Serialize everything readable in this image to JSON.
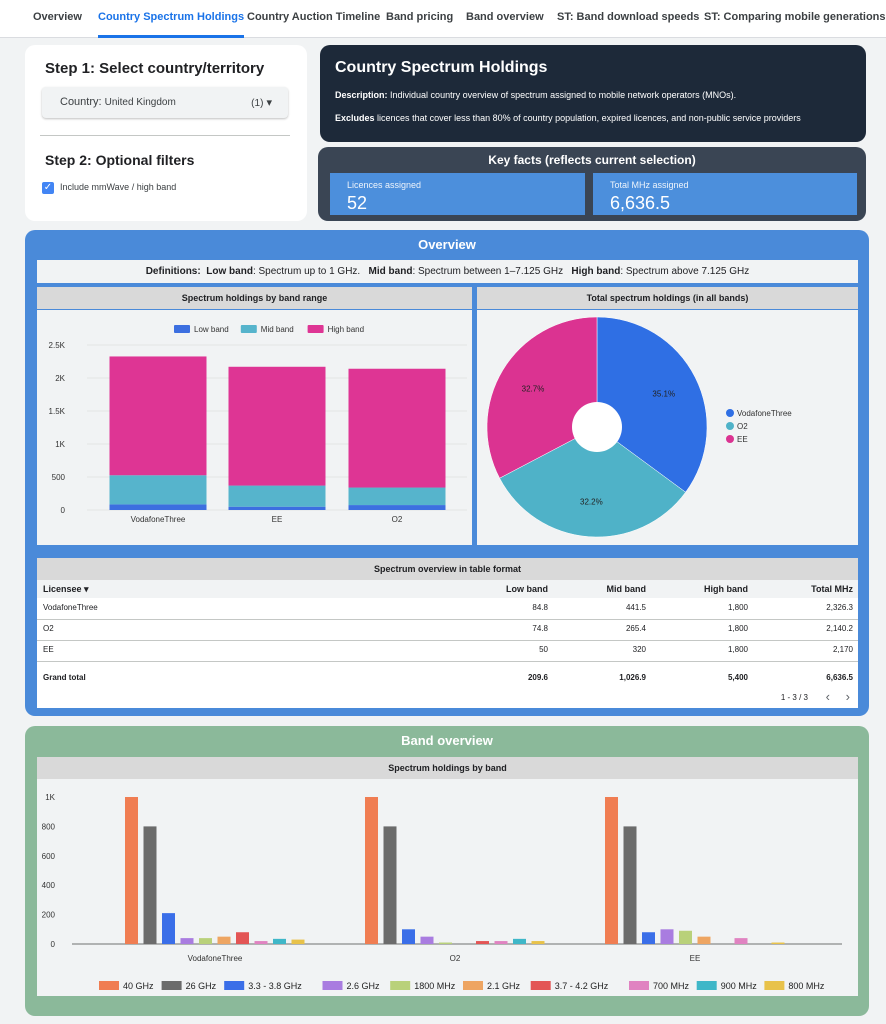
{
  "nav": {
    "tabs": [
      {
        "label": "Overview"
      },
      {
        "label": "Country Spectrum Holdings",
        "active": true
      },
      {
        "label": "Country Auction Timeline"
      },
      {
        "label": "Band pricing"
      },
      {
        "label": "Band overview"
      },
      {
        "label": "ST: Band download speeds"
      },
      {
        "label": "ST: Comparing mobile generations"
      }
    ]
  },
  "steps": {
    "step1_title": "Step 1: Select country/territory",
    "country_label": "Country:",
    "country_value": "United Kingdom",
    "country_count": "(1)",
    "step2_title": "Step 2: Optional filters",
    "mmwave_label": "Include mmWave / high band",
    "mmwave_checked": true
  },
  "header": {
    "title": "Country Spectrum Holdings",
    "desc_label": "Description:",
    "desc_text": "Individual country overview of spectrum assigned to mobile network operators (MNOs).",
    "excl_label": "Excludes",
    "excl_text": "licences that cover less than 80% of country population, expired licences, and non-public service providers"
  },
  "key_facts": {
    "title": "Key facts (reflects current selection)",
    "licences_label": "Licences assigned",
    "licences_value": "52",
    "mhz_label": "Total MHz assigned",
    "mhz_value": "6,636.5"
  },
  "overview": {
    "title": "Overview",
    "definitions": {
      "label": "Definitions:",
      "low_label": "Low band",
      "low_text": ": Spectrum up to 1 GHz.",
      "mid_label": "Mid band",
      "mid_text": ": Spectrum between 1–7.125 GHz",
      "high_label": "High band",
      "high_text": ": Spectrum above 7.125 GHz"
    },
    "bar_title": "Spectrum holdings by band range",
    "pie_title": "Total spectrum holdings (in all bands)",
    "table_title": "Spectrum overview in table format"
  },
  "table": {
    "headers": [
      "Licensee ▾",
      "Low band",
      "Mid band",
      "High band",
      "Total MHz"
    ],
    "rows": [
      [
        "VodafoneThree",
        "84.8",
        "441.5",
        "1,800",
        "2,326.3"
      ],
      [
        "O2",
        "74.8",
        "265.4",
        "1,800",
        "2,140.2"
      ],
      [
        "EE",
        "50",
        "320",
        "1,800",
        "2,170"
      ]
    ],
    "total": [
      "Grand total",
      "209.6",
      "1,026.9",
      "5,400",
      "6,636.5"
    ],
    "pagination": "1 - 3 / 3",
    "prev_icon": "‹",
    "next_icon": "›"
  },
  "band_overview": {
    "title": "Band overview",
    "chart_title": "Spectrum holdings by band"
  },
  "colors": {
    "low": "#3c6fe0",
    "mid": "#56b4cc",
    "high": "#de3594"
  },
  "chart_data": [
    {
      "type": "bar",
      "stacked": true,
      "title": "Spectrum holdings by band range",
      "categories": [
        "VodafoneThree",
        "EE",
        "O2"
      ],
      "series": [
        {
          "name": "Low band",
          "color": "#3c6fe0",
          "values": [
            84.8,
            50,
            74.8
          ]
        },
        {
          "name": "Mid band",
          "color": "#56b4cc",
          "values": [
            441.5,
            320,
            265.4
          ]
        },
        {
          "name": "High band",
          "color": "#de3594",
          "values": [
            1800,
            1800,
            1800
          ]
        }
      ],
      "yticks": [
        "0",
        "500",
        "1K",
        "1.5K",
        "2K",
        "2.5K"
      ],
      "ylim": [
        0,
        2500
      ],
      "legend": "top"
    },
    {
      "type": "pie",
      "title": "Total spectrum holdings (in all bands)",
      "labels": [
        "VodafoneThree",
        "O2",
        "EE"
      ],
      "values": [
        35.1,
        32.2,
        32.7
      ],
      "value_labels": [
        "35.1%",
        "32.2%",
        "32.7%"
      ],
      "colors": [
        "#2f6fe4",
        "#4fb2c8",
        "#db3391"
      ],
      "donut": true,
      "legend": "right"
    },
    {
      "type": "bar",
      "title": "Spectrum holdings by band",
      "categories": [
        "VodafoneThree",
        "O2",
        "EE"
      ],
      "series": [
        {
          "name": "40 GHz",
          "color": "#f07d52",
          "values": [
            1000,
            1000,
            1000
          ]
        },
        {
          "name": "26 GHz",
          "color": "#6b6b6b",
          "values": [
            800,
            800,
            800
          ]
        },
        {
          "name": "3.3 - 3.8 GHz",
          "color": "#3a6ee8",
          "values": [
            210,
            100,
            80
          ]
        },
        {
          "name": "2.6 GHz",
          "color": "#a97ce0",
          "values": [
            40,
            50,
            100
          ]
        },
        {
          "name": "1800 MHz",
          "color": "#b9d17a",
          "values": [
            40,
            10,
            90
          ]
        },
        {
          "name": "2.1 GHz",
          "color": "#eea562",
          "values": [
            50,
            0,
            50
          ]
        },
        {
          "name": "3.7 - 4.2 GHz",
          "color": "#e35555",
          "values": [
            80,
            20,
            0
          ]
        },
        {
          "name": "700 MHz",
          "color": "#e083c1",
          "values": [
            20,
            20,
            40
          ]
        },
        {
          "name": "900 MHz",
          "color": "#3fb7c8",
          "values": [
            35,
            35,
            0
          ]
        },
        {
          "name": "800 MHz",
          "color": "#e8c24a",
          "values": [
            30,
            20,
            10
          ]
        }
      ],
      "yticks": [
        "0",
        "200",
        "400",
        "600",
        "800",
        "1K"
      ],
      "ylim": [
        0,
        1000
      ],
      "legend": "bottom"
    }
  ]
}
